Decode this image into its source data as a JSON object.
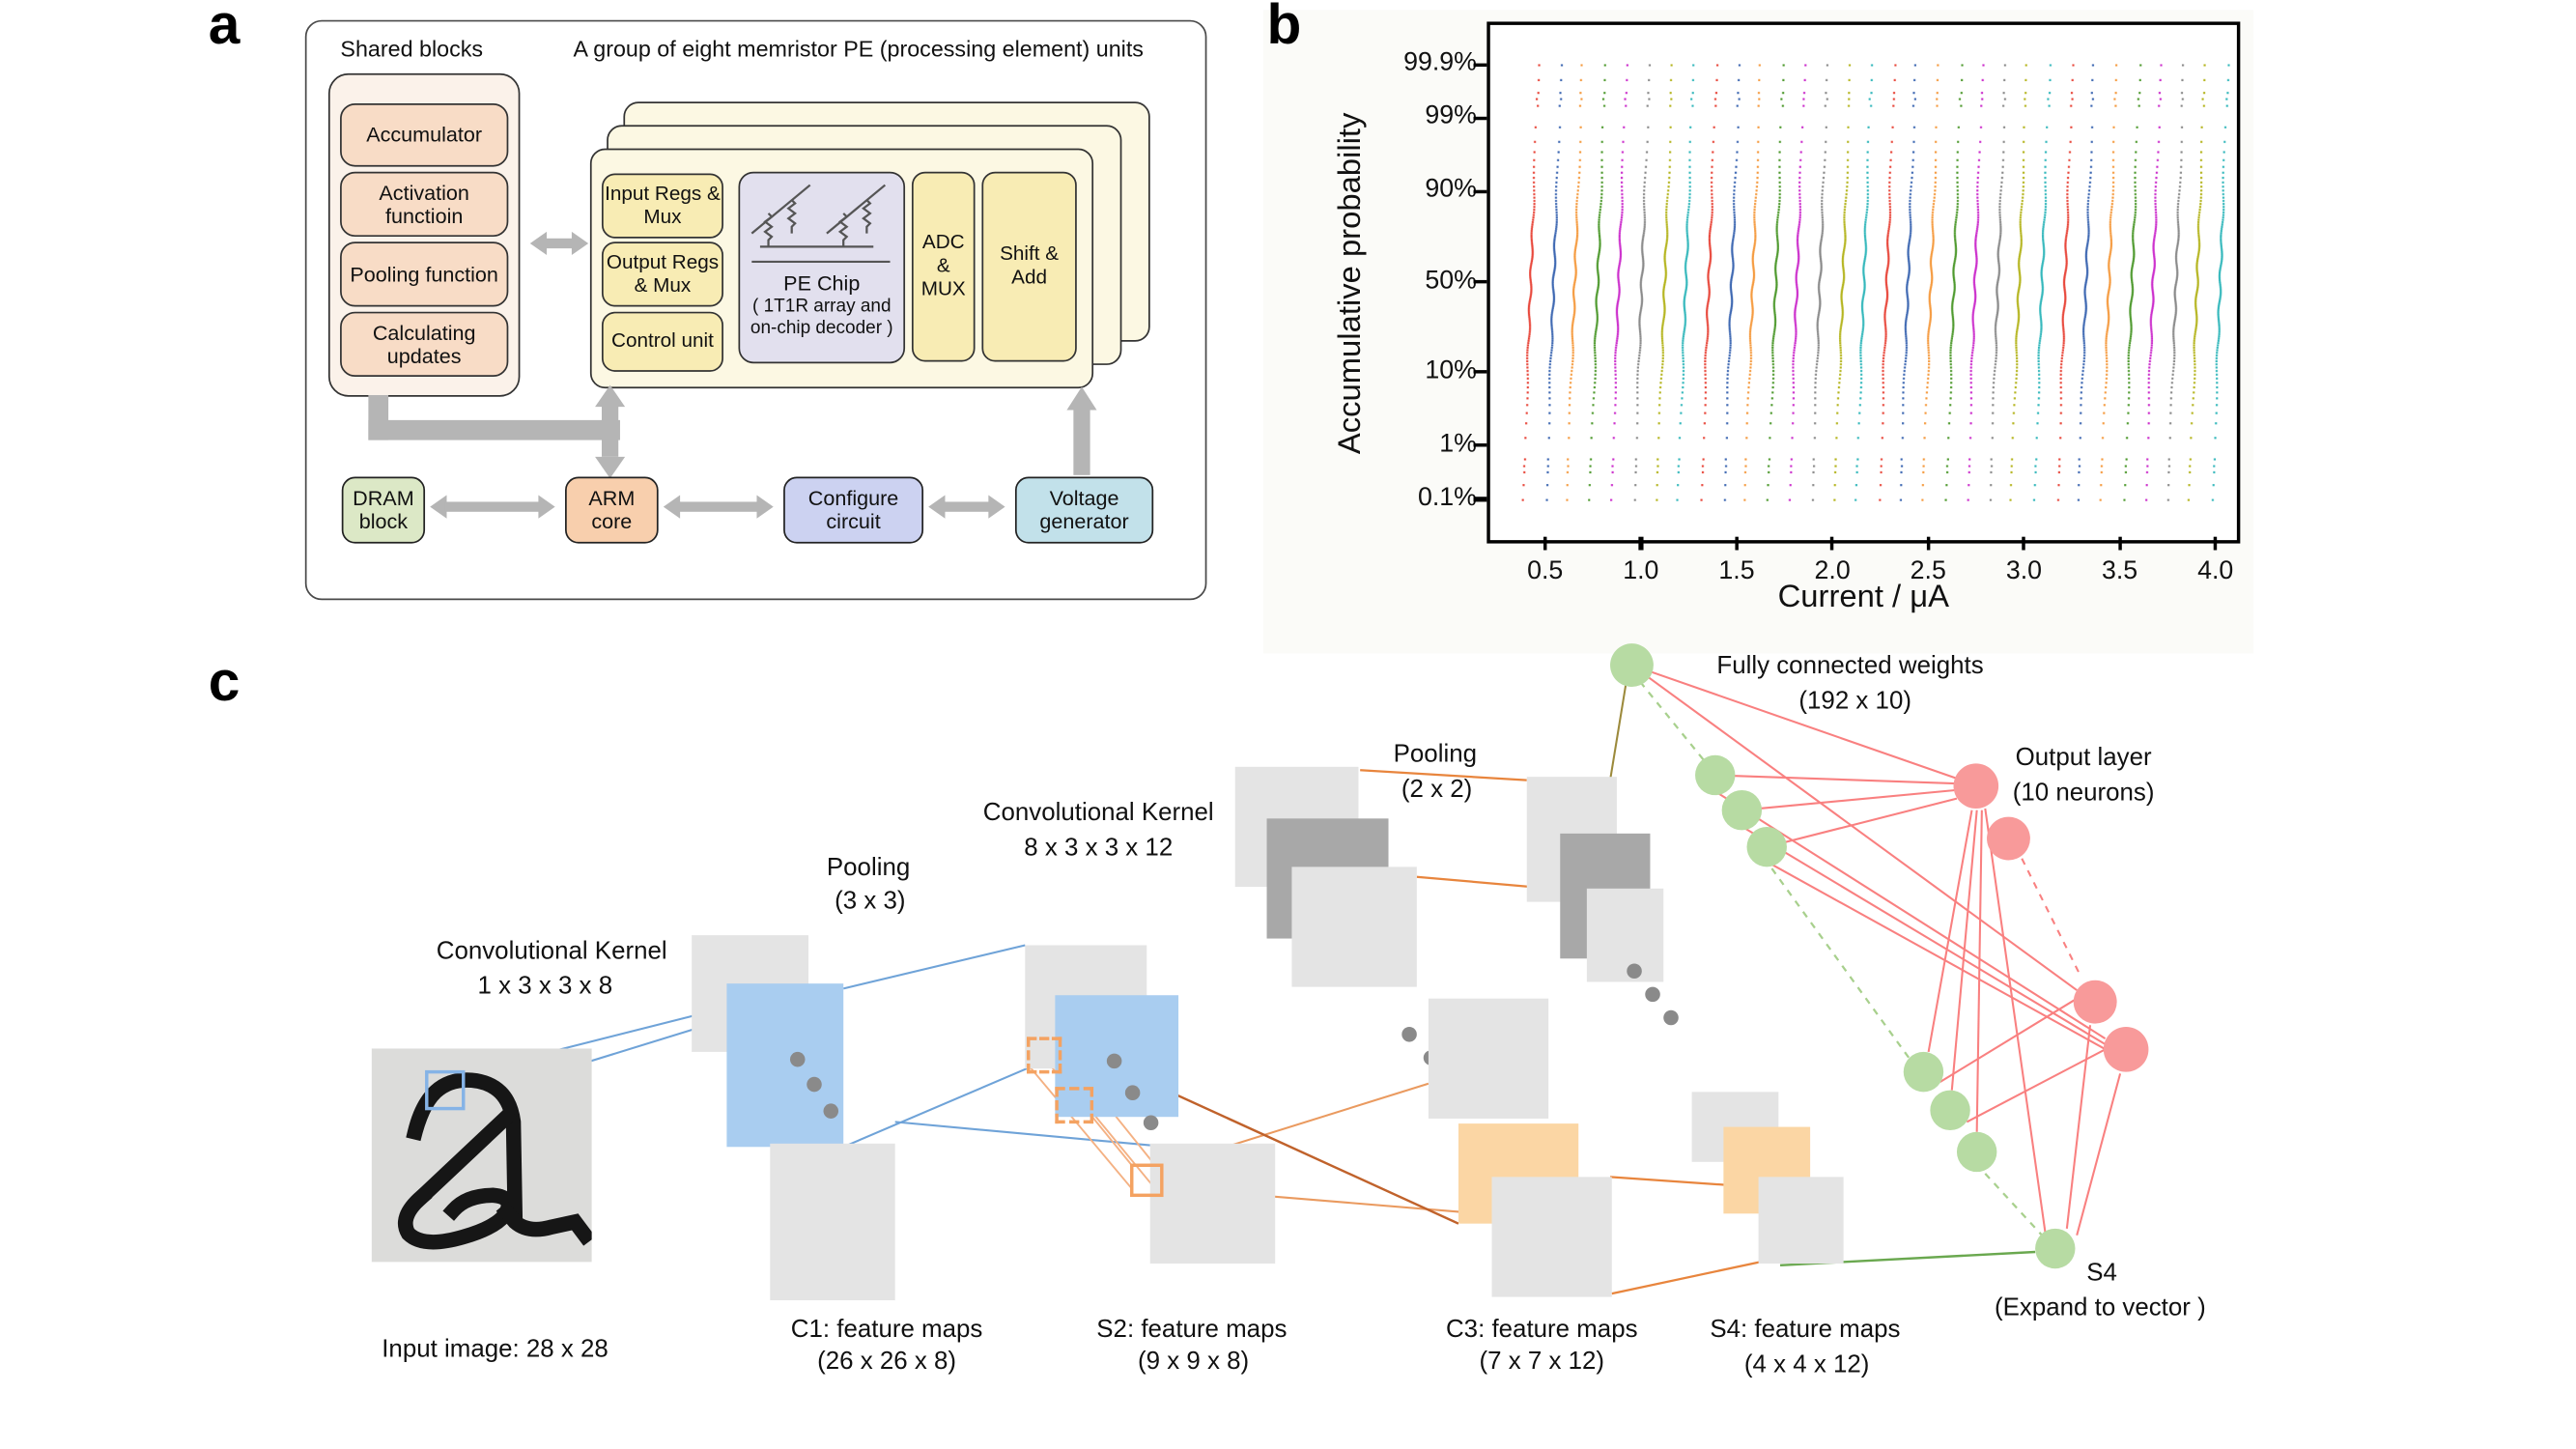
{
  "figure": {
    "panel_a": {
      "label": "a",
      "shared_title": "Shared blocks",
      "group_title": "A group of eight memristor PE (processing element) units",
      "shared_blocks": [
        "Accumulator",
        "Activation functioin",
        "Pooling function",
        "Calculating updates"
      ],
      "pe_unit": {
        "input_regs": "Input Regs & Mux",
        "output_regs": "Output Regs & Mux",
        "control": "Control unit",
        "pe_chip_name": "PE Chip",
        "pe_chip_sub1": "( 1T1R array and",
        "pe_chip_sub2": "on-chip decoder )",
        "adc": "ADC & MUX",
        "shift": "Shift & Add"
      },
      "bottom_row": [
        {
          "label": "DRAM block",
          "color": "#dce8c6"
        },
        {
          "label": "ARM core",
          "color": "#f8cfad"
        },
        {
          "label": "Configure circuit",
          "color": "#ccd2f1"
        },
        {
          "label": "Voltage generator",
          "color": "#c2e1ea"
        }
      ]
    },
    "panel_b": {
      "label": "b",
      "chart_data": {
        "type": "scatter",
        "subtype": "cumulative-probability-cdf",
        "title": "",
        "xlabel": "Current / μA",
        "ylabel": "Accumulative probability",
        "x_ticks": [
          0.5,
          1.0,
          1.5,
          2.0,
          2.5,
          3.0,
          3.5,
          4.0
        ],
        "y_ticks": [
          {
            "label": "0.1%",
            "p": 0.001
          },
          {
            "label": "1%",
            "p": 0.01
          },
          {
            "label": "10%",
            "p": 0.1
          },
          {
            "label": "50%",
            "p": 0.5
          },
          {
            "label": "90%",
            "p": 0.9
          },
          {
            "label": "99%",
            "p": 0.99
          },
          {
            "label": "99.9%",
            "p": 0.999
          }
        ],
        "xlim": [
          0.2,
          4.14
        ],
        "prob_scale": "probit",
        "prob_range": [
          0.001,
          0.999
        ],
        "n_states": 32,
        "median_current_uA": [
          0.42,
          0.54,
          0.65,
          0.77,
          0.88,
          1.0,
          1.12,
          1.23,
          1.35,
          1.47,
          1.58,
          1.7,
          1.81,
          1.93,
          2.05,
          2.16,
          2.28,
          2.39,
          2.51,
          2.63,
          2.74,
          2.86,
          2.97,
          3.09,
          3.21,
          3.32,
          3.44,
          3.56,
          3.67,
          3.79,
          3.9,
          4.02
        ],
        "sigma_uA": 0.013,
        "points_per_curve": 110,
        "color_cycle": [
          "#e8483c",
          "#3e68b2",
          "#f59b40",
          "#4f9a2f",
          "#cc2fcc",
          "#8a8a8a",
          "#b5b520",
          "#35b8bc"
        ],
        "legend": "none",
        "grid": false
      }
    },
    "panel_c": {
      "label": "c",
      "conv_kernel_1": [
        "Convolutional Kernel",
        "1 x 3 x 3 x 8"
      ],
      "input_caption": "Input image: 28 x 28",
      "c1_caption": [
        "C1: feature maps",
        "(26 x 26 x 8)"
      ],
      "pooling_1": [
        "Pooling",
        "(3 x 3)"
      ],
      "conv_kernel_2": [
        "Convolutional Kernel",
        "8 x 3 x 3 x 12"
      ],
      "s2_caption": [
        "S2: feature maps",
        "(9 x 9 x 8)"
      ],
      "pooling_2": [
        "Pooling",
        "(2 x 2)"
      ],
      "c3_caption": [
        "C3: feature maps",
        "(7 x 7 x 12)"
      ],
      "s4_caption": [
        "S4: feature maps",
        "(4 x 4 x 12)"
      ],
      "fc_label": [
        "Fully connected weights",
        "(192 x 10)"
      ],
      "output_label": [
        "Output layer",
        "(10 neurons)"
      ],
      "s4_vector_label": [
        "S4",
        "(Expand to vector )"
      ]
    }
  }
}
